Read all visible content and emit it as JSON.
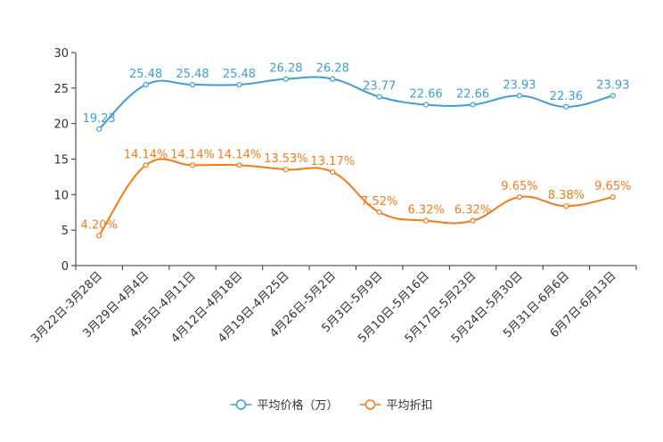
{
  "chart_data": {
    "type": "line",
    "title": "",
    "xlabel": "",
    "ylabel": "",
    "ylim": [
      0,
      30
    ],
    "yticks": [
      0,
      5,
      10,
      15,
      20,
      25,
      30
    ],
    "categories": [
      "3月22日-3月28日",
      "3月29日-4月4日",
      "4月5日-4月11日",
      "4月12日-4月18日",
      "4月19日-4月25日",
      "4月26日-5月2日",
      "5月3日-5月9日",
      "5月10日-5月16日",
      "5月17日-5月23日",
      "5月24日-5月30日",
      "5月31日-6月6日",
      "6月7日-6月13日"
    ],
    "series": [
      {
        "name": "平均价格（万）",
        "color": "#3d9fd1",
        "values": [
          19.23,
          25.48,
          25.48,
          25.48,
          26.28,
          26.28,
          23.77,
          22.66,
          22.66,
          23.93,
          22.36,
          23.93
        ],
        "labels": [
          "19.23",
          "25.48",
          "25.48",
          "25.48",
          "26.28",
          "26.28",
          "23.77",
          "22.66",
          "22.66",
          "23.93",
          "22.36",
          "23.93"
        ]
      },
      {
        "name": "平均折扣",
        "color": "#f07c1a",
        "values": [
          4.2,
          14.14,
          14.14,
          14.14,
          13.53,
          13.17,
          7.52,
          6.32,
          6.32,
          9.65,
          8.38,
          9.65
        ],
        "labels": [
          "4.20%",
          "14.14%",
          "14.14%",
          "14.14%",
          "13.53%",
          "13.17%",
          "7.52%",
          "6.32%",
          "6.32%",
          "9.65%",
          "8.38%",
          "9.65%"
        ]
      }
    ],
    "legend": "bottom-center",
    "grid": false
  }
}
